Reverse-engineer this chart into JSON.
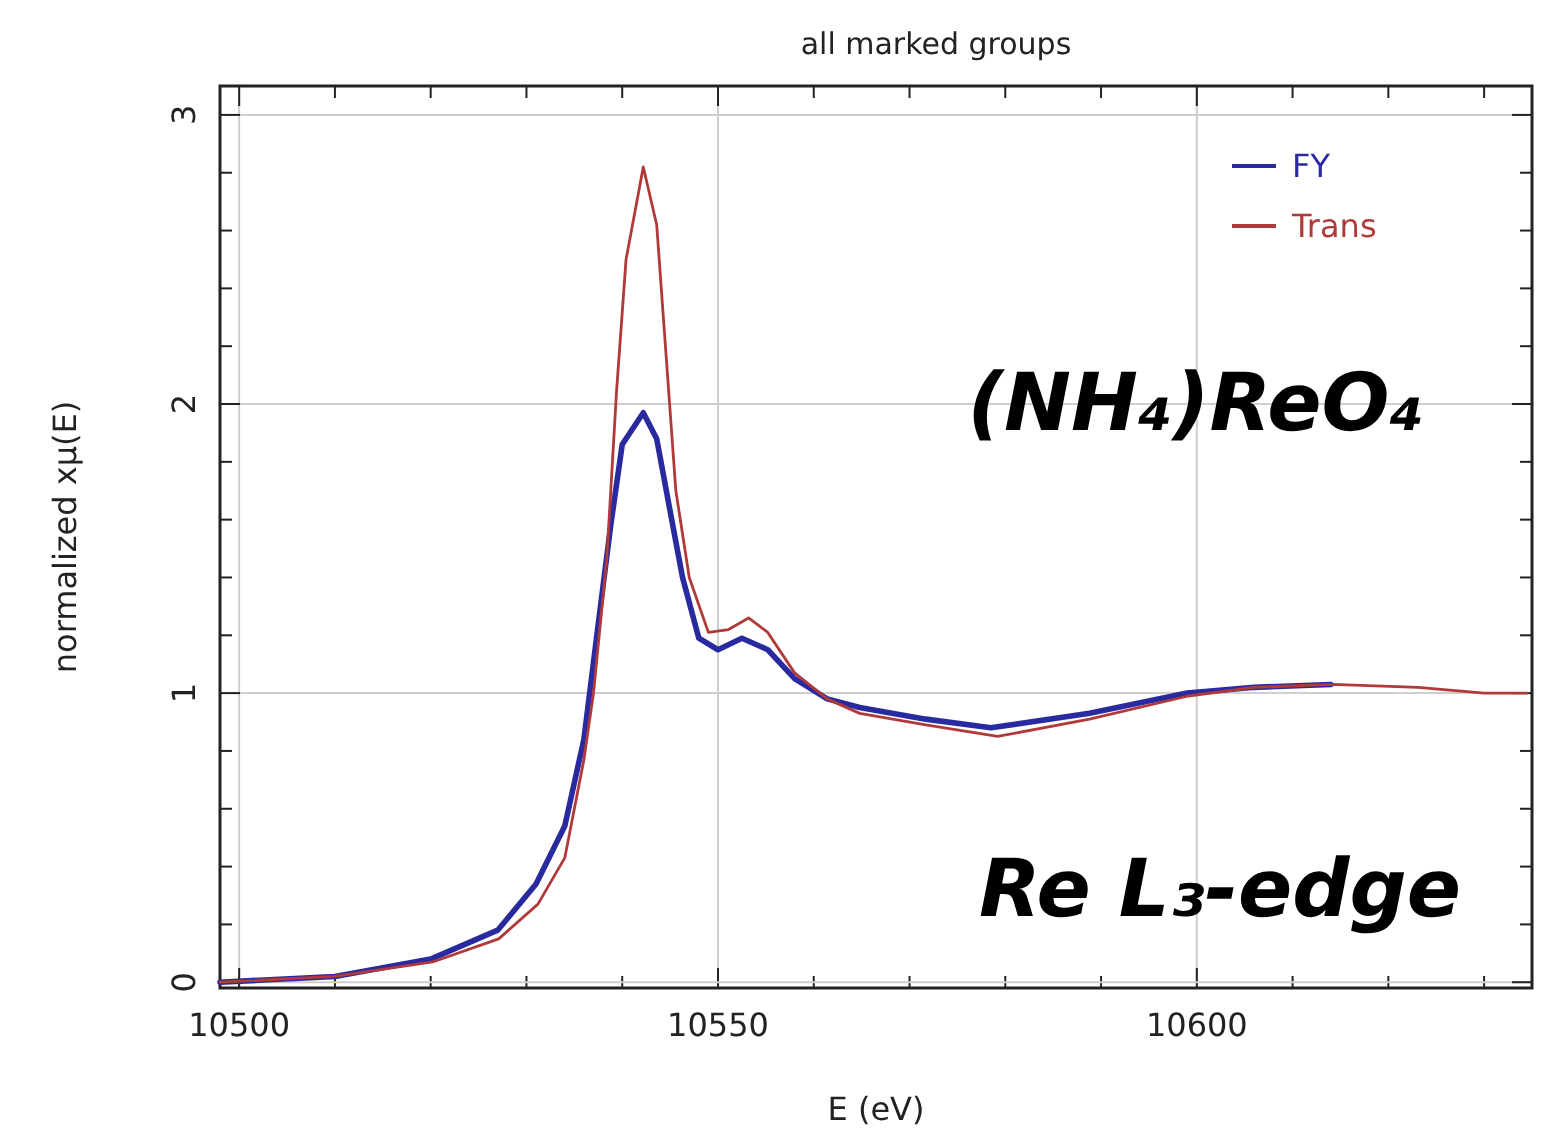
{
  "chart_data": {
    "type": "line",
    "title": "all marked groups",
    "xlabel": "E (eV)",
    "ylabel": "normalized xμ(E)",
    "xlim": [
      10498,
      10635
    ],
    "ylim": [
      -0.02,
      3.1
    ],
    "xticks": [
      10500,
      {
        "value": 10510,
        "label": null
      },
      {
        "value": 10520,
        "label": null
      },
      {
        "value": 10530,
        "label": null
      },
      {
        "value": 10540,
        "label": null
      },
      10550,
      {
        "value": 10560,
        "label": null
      },
      {
        "value": 10570,
        "label": null
      },
      {
        "value": 10580,
        "label": null
      },
      {
        "value": 10590,
        "label": null
      },
      10600,
      {
        "value": 10610,
        "label": null
      },
      {
        "value": 10620,
        "label": null
      },
      {
        "value": 10630,
        "label": null
      }
    ],
    "yticks": [
      0,
      {
        "value": 0.2,
        "label": null
      },
      {
        "value": 0.4,
        "label": null
      },
      {
        "value": 0.6,
        "label": null
      },
      {
        "value": 0.8,
        "label": null
      },
      1,
      {
        "value": 1.2,
        "label": null
      },
      {
        "value": 1.4,
        "label": null
      },
      {
        "value": 1.6,
        "label": null
      },
      {
        "value": 1.8,
        "label": null
      },
      2,
      {
        "value": 2.2,
        "label": null
      },
      {
        "value": 2.4,
        "label": null
      },
      {
        "value": 2.6,
        "label": null
      },
      {
        "value": 2.8,
        "label": null
      },
      3
    ],
    "grid": true,
    "legend": "top right",
    "line_style": "solid",
    "annotations": [
      "(NH₄)ReO₄",
      "Re L₃-edge"
    ],
    "series": [
      {
        "name": "FY",
        "color": "#2a2aa0",
        "x": [
          10498,
          10510,
          10520,
          10527,
          10531,
          10534,
          10536,
          10537.5,
          10538.8,
          10540,
          10542.2,
          10543.6,
          10545,
          10546.3,
          10548,
          10550,
          10552.5,
          10555.2,
          10558,
          10561.4,
          10564.8,
          10571.7,
          10578.5,
          10588.8,
          10599,
          10606,
          10614
        ],
        "values": [
          0,
          0.02,
          0.08,
          0.18,
          0.34,
          0.54,
          0.84,
          1.24,
          1.58,
          1.86,
          1.97,
          1.88,
          1.63,
          1.4,
          1.19,
          1.15,
          1.19,
          1.15,
          1.05,
          0.98,
          0.95,
          0.91,
          0.88,
          0.93,
          1.0,
          1.02,
          1.03
        ]
      },
      {
        "name": "Trans",
        "color": "#b03a3a",
        "x": [
          10498,
          10510,
          10520.2,
          10527.1,
          10531.2,
          10534,
          10536,
          10537,
          10538.4,
          10539.4,
          10540.4,
          10542.2,
          10543.6,
          10544.6,
          10545.6,
          10547,
          10549,
          10551.1,
          10553.2,
          10555.2,
          10558,
          10561.4,
          10564.8,
          10571.7,
          10579.2,
          10588.8,
          10599.1,
          10606,
          10614.2,
          10623.1,
          10630,
          10634.5
        ],
        "values": [
          0,
          0.02,
          0.07,
          0.15,
          0.27,
          0.43,
          0.77,
          1.0,
          1.47,
          2.04,
          2.5,
          2.82,
          2.62,
          2.16,
          1.7,
          1.4,
          1.21,
          1.22,
          1.26,
          1.21,
          1.07,
          0.98,
          0.93,
          0.89,
          0.85,
          0.91,
          0.99,
          1.02,
          1.03,
          1.02,
          1.0,
          1.0
        ]
      }
    ]
  }
}
